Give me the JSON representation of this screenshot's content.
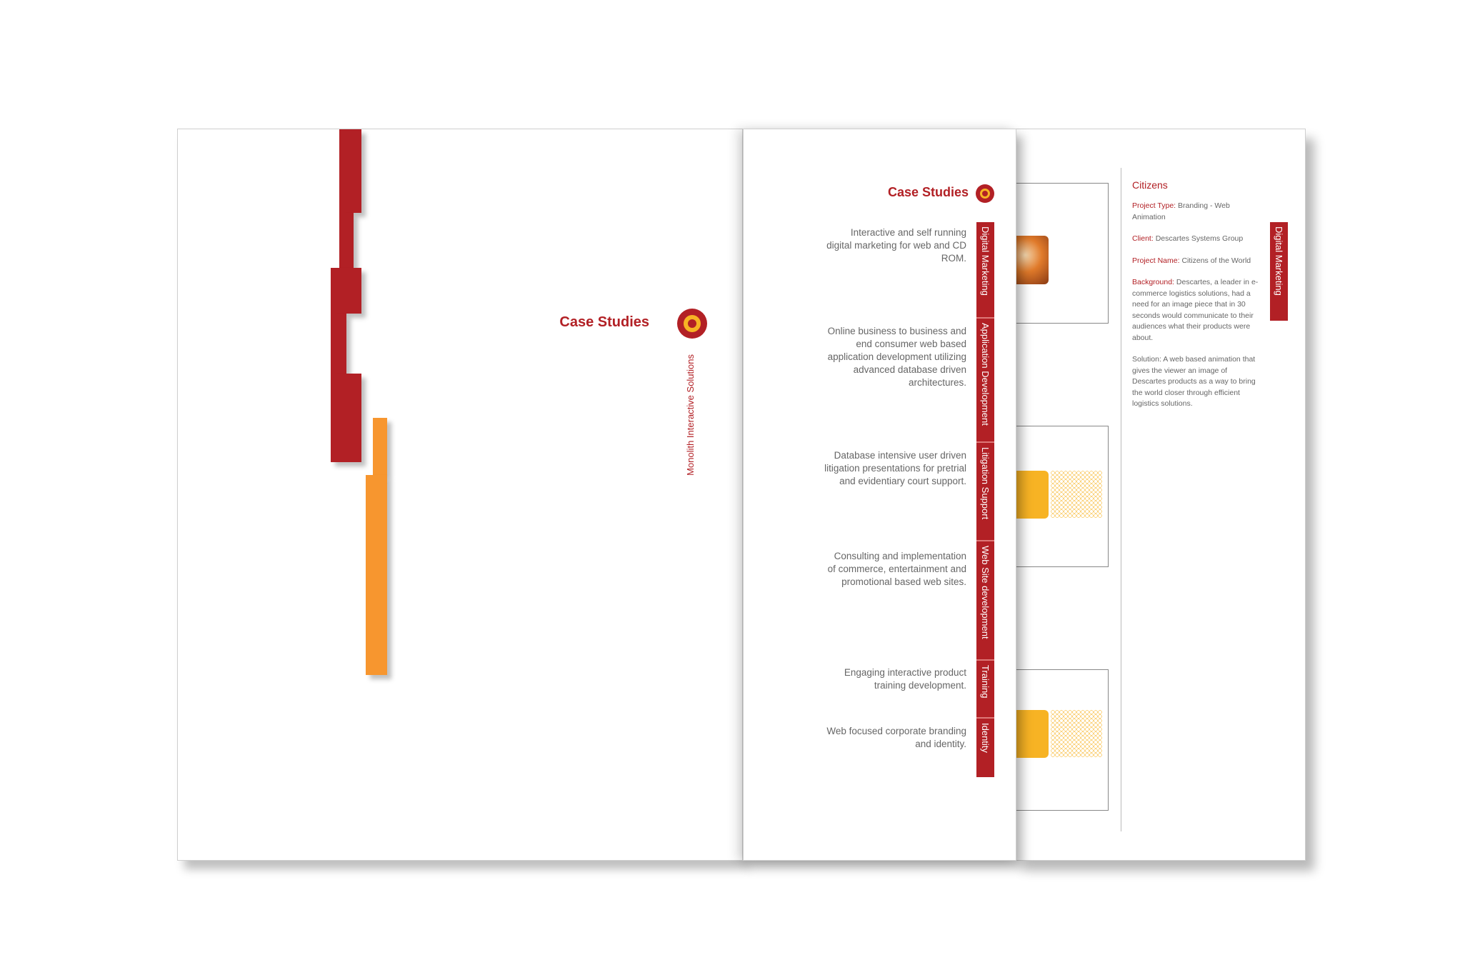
{
  "cover": {
    "title": "Case Studies",
    "subtitle": "Monolith Interactive Solutions"
  },
  "overview": {
    "title": "Case Studies",
    "services": [
      {
        "tab": "Digital Marketing",
        "description": "Interactive and self running digital marketing for web and CD ROM."
      },
      {
        "tab": "Application Development",
        "description": "Online business to business and end consumer web based application development utilizing advanced database driven architectures."
      },
      {
        "tab": "Litigation Support",
        "description": "Database intensive user driven litigation presentations for pretrial and evidentiary court support."
      },
      {
        "tab": "Web Site development",
        "description": "Consulting and implementation of commerce, entertainment and promotional based web sites."
      },
      {
        "tab": "Training",
        "description": "Engaging interactive product training development."
      },
      {
        "tab": "Identity",
        "description": "Web focused corporate branding and identity."
      }
    ]
  },
  "case": {
    "title": "Citizens",
    "tab": "Digital Marketing",
    "project_type_label": "Project Type:",
    "project_type": "Branding - Web Animation",
    "client_label": "Client:",
    "client": "Descartes Systems Group",
    "project_name_label": "Project Name:",
    "project_name": "Citizens of the World",
    "background_label": "Background:",
    "background": "Descartes, a leader in e-commerce logistics solutions, had a need for an image piece that in 30 seconds would communicate to their audiences what their products were about.",
    "solution": "Solution: A web based animation that gives the viewer an image of Descartes products as a way to bring the world closer through efficient logistics solutions."
  },
  "colors": {
    "brand_red": "#b22025",
    "orange": "#f7962f",
    "yellow": "#f7b324"
  }
}
